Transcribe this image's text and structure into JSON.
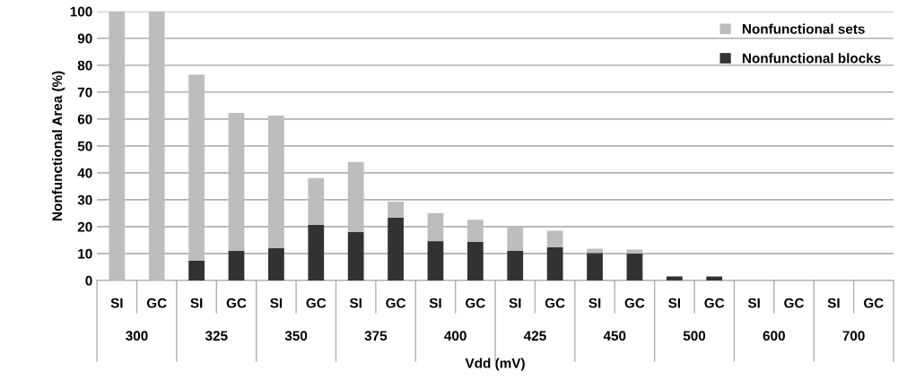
{
  "chart_data": {
    "type": "bar",
    "stacked": true,
    "categories": [
      "SI",
      "GC",
      "SI",
      "GC",
      "SI",
      "GC",
      "SI",
      "GC",
      "SI",
      "GC",
      "SI",
      "GC",
      "SI",
      "GC",
      "SI",
      "GC",
      "SI",
      "GC",
      "SI",
      "GC"
    ],
    "series": [
      {
        "name": "Nonfunctional blocks",
        "color": "#333132",
        "values": [
          0,
          0,
          7.3,
          11,
          12,
          20.7,
          18,
          23.3,
          14.6,
          14.4,
          11.1,
          12.4,
          10.2,
          10,
          1.5,
          1.5,
          0,
          0,
          0,
          0
        ]
      },
      {
        "name": "Nonfunctional sets",
        "color": "#bcbdbf",
        "values": [
          100,
          100,
          69.2,
          51.3,
          49.3,
          17.3,
          26,
          6,
          10.4,
          8.1,
          8.9,
          6.1,
          1.6,
          1.5,
          0,
          0,
          0,
          0,
          0,
          0
        ]
      }
    ],
    "annotations": [
      "300",
      "325",
      "350",
      "375",
      "400",
      "425",
      "450",
      "500",
      "600",
      "700"
    ],
    "xlabel": "Vdd (mV)",
    "ylabel": "Nonfunctional Area (%)",
    "ylim": [
      0,
      100
    ],
    "yticks": [
      0,
      10,
      20,
      30,
      40,
      50,
      60,
      70,
      80,
      90,
      100
    ],
    "grid": "y",
    "legend": "top right"
  }
}
